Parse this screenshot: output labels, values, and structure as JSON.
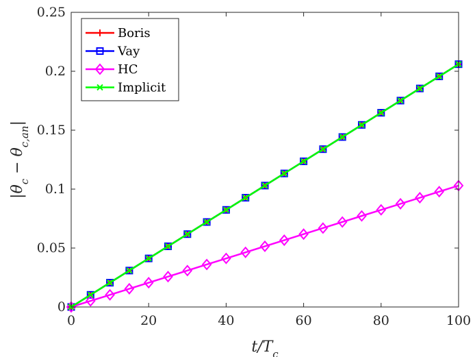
{
  "chart_data": {
    "type": "line",
    "xlabel": "t/T_c",
    "ylabel": "|θ_c − θ_c,an|",
    "xlim": [
      0,
      100
    ],
    "ylim": [
      0,
      0.25
    ],
    "xticks": [
      0,
      20,
      40,
      60,
      80,
      100
    ],
    "xtick_labels": [
      "0",
      "20",
      "40",
      "60",
      "80",
      "100"
    ],
    "yticks": [
      0,
      0.05,
      0.1,
      0.15,
      0.2,
      0.25
    ],
    "ytick_labels": [
      "0",
      "0.05",
      "0.1",
      "0.15",
      "0.2",
      "0.25"
    ],
    "grid": false,
    "legend_position": "top-left",
    "x": [
      0,
      5,
      10,
      15,
      20,
      25,
      30,
      35,
      40,
      45,
      50,
      55,
      60,
      65,
      70,
      75,
      80,
      85,
      90,
      95,
      100
    ],
    "series": [
      {
        "name": "Boris",
        "color": "#ff0000",
        "marker": "plus",
        "values": [
          0,
          0.0103,
          0.0206,
          0.0309,
          0.0412,
          0.0515,
          0.0618,
          0.0721,
          0.0824,
          0.0927,
          0.103,
          0.1133,
          0.1236,
          0.1339,
          0.1442,
          0.1545,
          0.1648,
          0.1751,
          0.1854,
          0.1957,
          0.206
        ]
      },
      {
        "name": "Vay",
        "color": "#0000ff",
        "marker": "square",
        "values": [
          0,
          0.0103,
          0.0206,
          0.0309,
          0.0412,
          0.0515,
          0.0618,
          0.0721,
          0.0824,
          0.0927,
          0.103,
          0.1133,
          0.1236,
          0.1339,
          0.1442,
          0.1545,
          0.1648,
          0.1751,
          0.1854,
          0.1957,
          0.206
        ]
      },
      {
        "name": "HC",
        "color": "#ff00ff",
        "marker": "diamond",
        "values": [
          0,
          0.00515,
          0.0103,
          0.01545,
          0.0206,
          0.02575,
          0.0309,
          0.03605,
          0.0412,
          0.04635,
          0.0515,
          0.05665,
          0.0618,
          0.06695,
          0.0721,
          0.07725,
          0.0824,
          0.08755,
          0.0927,
          0.09785,
          0.103
        ]
      },
      {
        "name": "Implicit",
        "color": "#00ff00",
        "marker": "x",
        "values": [
          0,
          0.0103,
          0.0206,
          0.0309,
          0.0412,
          0.0515,
          0.0618,
          0.0721,
          0.0824,
          0.0927,
          0.103,
          0.1133,
          0.1236,
          0.1339,
          0.1442,
          0.1545,
          0.1648,
          0.1751,
          0.1854,
          0.1957,
          0.206
        ]
      }
    ]
  }
}
